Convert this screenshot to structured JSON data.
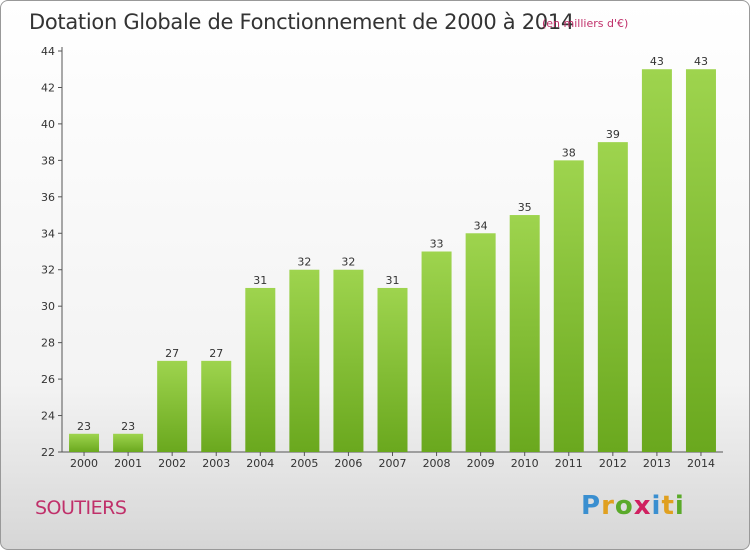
{
  "header": {
    "title": "Dotation Globale de Fonctionnement de 2000 à 2014",
    "subtitle": "(en milliers d'€)"
  },
  "footer": {
    "commune": "SOUTIERS",
    "logo_text": "Proxiti"
  },
  "colors": {
    "bar_light": "#9ed44e",
    "bar_dark": "#6aa81e",
    "title": "#333333",
    "accent": "#c0306a"
  },
  "chart_data": {
    "type": "bar",
    "title": "Dotation Globale de Fonctionnement de 2000 à 2014",
    "subtitle": "(en milliers d'€)",
    "categories": [
      "2000",
      "2001",
      "2002",
      "2003",
      "2004",
      "2005",
      "2006",
      "2007",
      "2008",
      "2009",
      "2010",
      "2011",
      "2012",
      "2013",
      "2014"
    ],
    "values": [
      23,
      23,
      27,
      27,
      31,
      32,
      32,
      31,
      33,
      34,
      35,
      38,
      39,
      43,
      43
    ],
    "ylim": [
      22,
      44
    ],
    "yticks": [
      22,
      24,
      26,
      28,
      30,
      32,
      34,
      36,
      38,
      40,
      42,
      44
    ],
    "grid": false,
    "legend": "none"
  }
}
